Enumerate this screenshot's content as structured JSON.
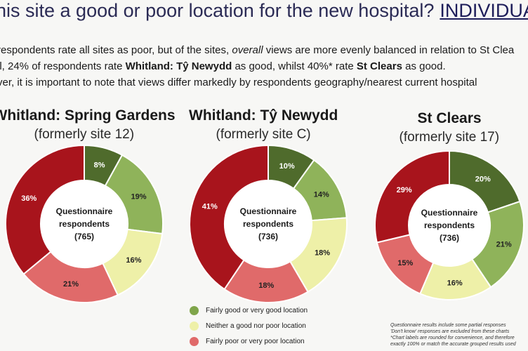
{
  "title": {
    "main": "his site a good or poor location for the new hospital?",
    "emphasis": "INDIVIDUA"
  },
  "bullets": [
    {
      "parts": [
        {
          "t": "respondents rate all sites as poor, but of the sites, ",
          "s": ""
        },
        {
          "t": "overall",
          "s": "i"
        },
        {
          "t": " views are more evenly balanced in relation to St Clea",
          "s": ""
        }
      ]
    },
    {
      "parts": [
        {
          "t": "ll, 24% of respondents rate ",
          "s": ""
        },
        {
          "t": "Whitland: Tŷ Newydd",
          "s": "b"
        },
        {
          "t": " as good, whilst 40%* rate ",
          "s": ""
        },
        {
          "t": "St Clears",
          "s": "b"
        },
        {
          "t": " as good.",
          "s": ""
        }
      ]
    },
    {
      "parts": [
        {
          "t": "ver, it is important to note that views differ markedly by respondents geography/nearest current hospital",
          "s": ""
        }
      ]
    }
  ],
  "chart_data": [
    {
      "type": "pie",
      "title": "Whitland: Spring Gardens",
      "subtitle": "(formerly site 12)",
      "center_label": [
        "Questionnaire",
        "respondents",
        "(765)"
      ],
      "slices": [
        {
          "category": "Fairly good or very good location",
          "label": "8%",
          "value": 8,
          "color": "#4f6b2c"
        },
        {
          "category": "Fairly good or very good location",
          "label": "19%",
          "value": 19,
          "color": "#8fb35a"
        },
        {
          "category": "Neither a good nor poor location",
          "label": "16%",
          "value": 16,
          "color": "#eef0a8"
        },
        {
          "category": "Fairly poor or very poor location",
          "label": "21%",
          "value": 21,
          "color": "#e06a6a"
        },
        {
          "category": "Fairly poor or very poor location",
          "label": "36%",
          "value": 36,
          "color": "#a8141c"
        }
      ]
    },
    {
      "type": "pie",
      "title": "Whitland: Tŷ Newydd",
      "subtitle": "(formerly site C)",
      "center_label": [
        "Questionnaire",
        "respondents",
        "(736)"
      ],
      "slices": [
        {
          "category": "Fairly good or very good location",
          "label": "10%",
          "value": 10,
          "color": "#4f6b2c"
        },
        {
          "category": "Fairly good or very good location",
          "label": "14%",
          "value": 14,
          "color": "#8fb35a"
        },
        {
          "category": "Neither a good nor poor location",
          "label": "18%",
          "value": 18,
          "color": "#eef0a8"
        },
        {
          "category": "Fairly poor or very poor location",
          "label": "18%",
          "value": 18,
          "color": "#e06a6a"
        },
        {
          "category": "Fairly poor or very poor location",
          "label": "41%",
          "value": 41,
          "color": "#a8141c"
        }
      ]
    },
    {
      "type": "pie",
      "title": "St Clears",
      "subtitle": "(formerly site 17)",
      "center_label": [
        "Questionnaire",
        "respondents",
        "(736)"
      ],
      "slices": [
        {
          "category": "Fairly good or very good location",
          "label": "20%",
          "value": 20,
          "color": "#4f6b2c"
        },
        {
          "category": "Fairly good or very good location",
          "label": "21%",
          "value": 21,
          "color": "#8fb35a"
        },
        {
          "category": "Neither a good nor poor location",
          "label": "16%",
          "value": 16,
          "color": "#eef0a8"
        },
        {
          "category": "Fairly poor or very poor location",
          "label": "15%",
          "value": 15,
          "color": "#e06a6a"
        },
        {
          "category": "Fairly poor or very poor location",
          "label": "29%",
          "value": 29,
          "color": "#a8141c"
        }
      ]
    }
  ],
  "legend": [
    {
      "label": "Fairly good or very good location",
      "color": "#7fa54a"
    },
    {
      "label": "Neither a good nor poor location",
      "color": "#eef0a8"
    },
    {
      "label": "Fairly poor or very poor location",
      "color": "#e06a6a"
    }
  ],
  "footnote": [
    "Questionnaire results include some partial responses",
    "'Don't know' responses are excluded from these charts",
    "*Chart labels are rounded for convenience, and therefore",
    "exactly 100% or match the accurate grouped results used"
  ]
}
